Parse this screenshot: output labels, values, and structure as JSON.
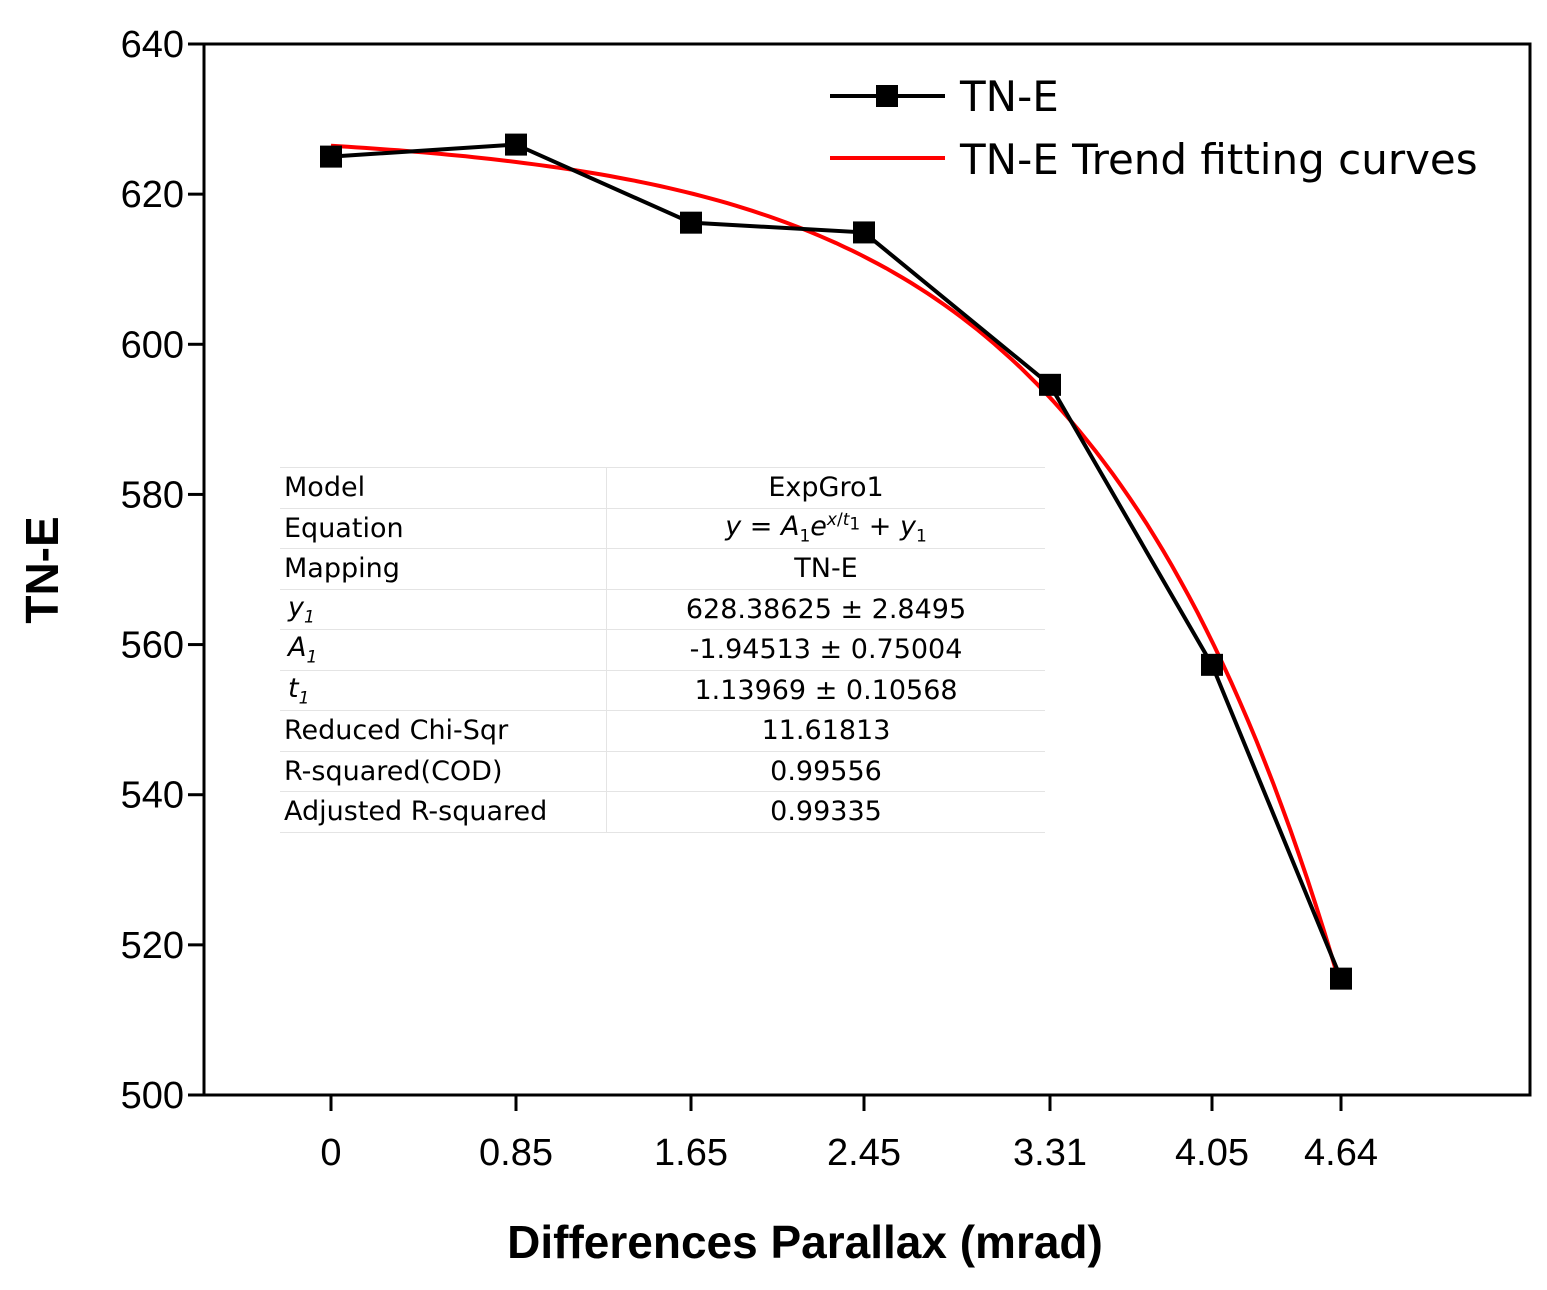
{
  "chart_data": {
    "type": "line",
    "title": "",
    "xlabel": "Differences Parallax (mrad)",
    "ylabel": "TN-E",
    "x": [
      0,
      0.85,
      1.65,
      2.45,
      3.31,
      4.05,
      4.64
    ],
    "x_tick_labels": [
      "0",
      "0.85",
      "1.65",
      "2.45",
      "3.31",
      "4.05",
      "4.64"
    ],
    "y_ticks": [
      500,
      520,
      540,
      560,
      580,
      600,
      620,
      640
    ],
    "y_tick_labels": [
      "500",
      "520",
      "540",
      "560",
      "580",
      "600",
      "620",
      "640"
    ],
    "xlim": [
      -0.5,
      5.5
    ],
    "ylim": [
      500,
      640
    ],
    "grid": false,
    "legend_position": "top-right",
    "series": [
      {
        "name": "TN-E",
        "values": [
          625.0,
          626.6,
          616.2,
          614.9,
          594.6,
          557.3,
          515.5
        ],
        "color": "#000000",
        "marker": "square"
      },
      {
        "name": "TN-E Trend fitting curves",
        "model": {
          "y1": 628.38625,
          "A1": -1.94513,
          "t1": 1.13969
        },
        "color": "#ff0000",
        "marker": "none"
      }
    ],
    "fit_table": {
      "rows": [
        {
          "label": "Model",
          "value": "ExpGro1"
        },
        {
          "label": "Equation",
          "value": "y = A1e^(x/t1) + y1"
        },
        {
          "label": "Mapping",
          "value": "TN-E"
        },
        {
          "label": "y1",
          "value": "628.38625 ± 2.8495"
        },
        {
          "label": "A1",
          "value": "-1.94513 ± 0.75004"
        },
        {
          "label": "t1",
          "value": "1.13969 ± 0.10568"
        },
        {
          "label": "Reduced Chi-Sqr",
          "value": "11.61813"
        },
        {
          "label": "R-squared(COD)",
          "value": "0.99556"
        },
        {
          "label": "Adjusted R-squared",
          "value": "0.99335"
        }
      ]
    }
  }
}
